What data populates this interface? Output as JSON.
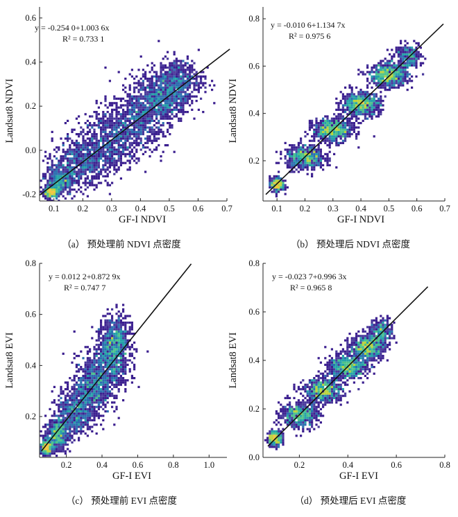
{
  "chart_data": [
    {
      "type": "scatter",
      "subtype": "density",
      "caption": "（a） 预处理前 NDVI 点密度",
      "xlabel": "GF-I NDVI",
      "ylabel": "Landsat8 NDVI",
      "xlim": [
        0.05,
        0.7
      ],
      "ylim": [
        -0.23,
        0.65
      ],
      "xticks": [
        "0.1",
        "0.2",
        "0.3",
        "0.4",
        "0.5",
        "0.6",
        "0.7"
      ],
      "yticks": [
        "-0.2",
        "0.0",
        "0.2",
        "0.4",
        "0.6"
      ],
      "equation": "y = -0.254 0+1.003 6x",
      "r2_label": "R² = 0.733 1",
      "fit": {
        "intercept": -0.254,
        "slope": 1.0036,
        "x_range": [
          0.05,
          0.71
        ]
      },
      "density_cloud": [
        {
          "x": 0.09,
          "y": -0.19,
          "sx": 0.012,
          "sy": 0.012,
          "n": 350
        },
        {
          "x": 0.12,
          "y": -0.14,
          "sx": 0.025,
          "sy": 0.035,
          "n": 450
        },
        {
          "x": 0.2,
          "y": -0.05,
          "sx": 0.05,
          "sy": 0.06,
          "n": 650
        },
        {
          "x": 0.3,
          "y": 0.05,
          "sx": 0.05,
          "sy": 0.07,
          "n": 650
        },
        {
          "x": 0.4,
          "y": 0.15,
          "sx": 0.05,
          "sy": 0.07,
          "n": 650
        },
        {
          "x": 0.48,
          "y": 0.25,
          "sx": 0.045,
          "sy": 0.06,
          "n": 750
        },
        {
          "x": 0.54,
          "y": 0.32,
          "sx": 0.04,
          "sy": 0.05,
          "n": 400
        }
      ]
    },
    {
      "type": "scatter",
      "subtype": "density",
      "caption": "（b） 预处理后 NDVI 点密度",
      "xlabel": "GF-I NDVI",
      "ylabel": "Landsat8 NDVI",
      "xlim": [
        0.05,
        0.7
      ],
      "ylim": [
        0.03,
        0.85
      ],
      "xticks": [
        "0.1",
        "0.2",
        "0.3",
        "0.4",
        "0.5",
        "0.6",
        "0.7"
      ],
      "yticks": [
        "0.2",
        "0.4",
        "0.6",
        "0.8"
      ],
      "equation": "y = -0.010 6+1.134 7x",
      "r2_label": "R² = 0.975 6",
      "fit": {
        "intercept": -0.0106,
        "slope": 1.1347,
        "x_range": [
          0.06,
          0.695
        ]
      },
      "density_cloud": [
        {
          "x": 0.1,
          "y": 0.1,
          "sx": 0.012,
          "sy": 0.015,
          "n": 300
        },
        {
          "x": 0.2,
          "y": 0.215,
          "sx": 0.035,
          "sy": 0.025,
          "n": 600
        },
        {
          "x": 0.3,
          "y": 0.33,
          "sx": 0.035,
          "sy": 0.025,
          "n": 700
        },
        {
          "x": 0.4,
          "y": 0.44,
          "sx": 0.035,
          "sy": 0.025,
          "n": 700
        },
        {
          "x": 0.5,
          "y": 0.56,
          "sx": 0.035,
          "sy": 0.025,
          "n": 700
        },
        {
          "x": 0.57,
          "y": 0.64,
          "sx": 0.025,
          "sy": 0.025,
          "n": 250
        }
      ]
    },
    {
      "type": "scatter",
      "subtype": "density",
      "caption": "（c） 预处理前 EVI 点密度",
      "xlabel": "GF-I EVI",
      "ylabel": "Landsat8 EVI",
      "xlim": [
        0.05,
        1.1
      ],
      "ylim": [
        0.04,
        0.8
      ],
      "xticks": [
        "0.2",
        "0.4",
        "0.6",
        "0.8",
        "1.0"
      ],
      "yticks": [
        "0.2",
        "0.4",
        "0.6",
        "0.8"
      ],
      "equation": "y = 0.012 2+0.872 9x",
      "r2_label": "R² = 0.747 7",
      "fit": {
        "intercept": 0.0122,
        "slope": 0.8729,
        "x_range": [
          0.06,
          0.9
        ]
      },
      "density_cloud": [
        {
          "x": 0.09,
          "y": 0.08,
          "sx": 0.015,
          "sy": 0.015,
          "n": 350
        },
        {
          "x": 0.15,
          "y": 0.13,
          "sx": 0.03,
          "sy": 0.03,
          "n": 500
        },
        {
          "x": 0.25,
          "y": 0.22,
          "sx": 0.05,
          "sy": 0.05,
          "n": 650
        },
        {
          "x": 0.35,
          "y": 0.32,
          "sx": 0.05,
          "sy": 0.06,
          "n": 700
        },
        {
          "x": 0.45,
          "y": 0.42,
          "sx": 0.05,
          "sy": 0.06,
          "n": 700
        },
        {
          "x": 0.48,
          "y": 0.5,
          "sx": 0.04,
          "sy": 0.05,
          "n": 500
        }
      ]
    },
    {
      "type": "scatter",
      "subtype": "density",
      "caption": "（d） 预处理后 EVI 点密度",
      "xlabel": "GF-I EVI",
      "ylabel": "Landsat8 EVI",
      "xlim": [
        0.05,
        0.8
      ],
      "ylim": [
        0.0,
        0.8
      ],
      "xticks": [
        "0.2",
        "0.4",
        "0.6",
        "0.8"
      ],
      "yticks": [
        "0.0",
        "0.2",
        "0.4",
        "0.6",
        "0.8"
      ],
      "equation": "y = -0.023 7+0.996 3x",
      "r2_label": "R² = 0.965 8",
      "fit": {
        "intercept": -0.0237,
        "slope": 0.9963,
        "x_range": [
          0.07,
          0.73
        ]
      },
      "density_cloud": [
        {
          "x": 0.1,
          "y": 0.08,
          "sx": 0.015,
          "sy": 0.015,
          "n": 300
        },
        {
          "x": 0.2,
          "y": 0.175,
          "sx": 0.04,
          "sy": 0.025,
          "n": 550
        },
        {
          "x": 0.3,
          "y": 0.275,
          "sx": 0.04,
          "sy": 0.025,
          "n": 650
        },
        {
          "x": 0.4,
          "y": 0.375,
          "sx": 0.04,
          "sy": 0.025,
          "n": 650
        },
        {
          "x": 0.48,
          "y": 0.455,
          "sx": 0.035,
          "sy": 0.025,
          "n": 650
        },
        {
          "x": 0.54,
          "y": 0.52,
          "sx": 0.025,
          "sy": 0.025,
          "n": 250
        }
      ]
    }
  ],
  "colors": {
    "density_scale": [
      "#3b1f8f",
      "#4a3a9c",
      "#2c6fb0",
      "#25a2a9",
      "#4cc28a",
      "#bcd33c",
      "#f2c33a"
    ],
    "fit_line": "#111111",
    "axis": "#222222"
  }
}
